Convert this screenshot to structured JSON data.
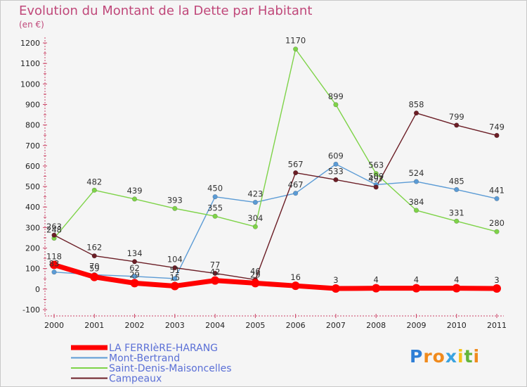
{
  "chart_data": {
    "type": "line",
    "title": "Evolution du Montant de la Dette par Habitant",
    "subtitle": "(en €)",
    "x": [
      "2000",
      "2001",
      "2002",
      "2003",
      "2004",
      "2005",
      "2006",
      "2007",
      "2008",
      "2009",
      "2010",
      "2011"
    ],
    "ylim": [
      -100,
      1200
    ],
    "yticks": [
      -100,
      0,
      100,
      200,
      300,
      400,
      500,
      600,
      700,
      800,
      900,
      1000,
      1100,
      1200
    ],
    "grid": false,
    "legend_position": "bottom-left",
    "series": [
      {
        "name": "Mont-Bertrand",
        "color": "#5b9bd5",
        "values": [
          83,
          70,
          62,
          51,
          450,
          423,
          467,
          609,
          509,
          524,
          485,
          441
        ]
      },
      {
        "name": "Saint-Denis-Maisoncelles",
        "color": "#7ed348",
        "values": [
          248,
          482,
          439,
          393,
          355,
          304,
          1170,
          899,
          563,
          384,
          331,
          280
        ]
      },
      {
        "name": "Campeaux",
        "color": "#6b1e26",
        "values": [
          263,
          162,
          134,
          104,
          77,
          46,
          567,
          533,
          497,
          858,
          799,
          749
        ]
      },
      {
        "name": "LA FERRIèRE-HARANG",
        "color": "#ff0000",
        "values": [
          118,
          59,
          29,
          15,
          42,
          29,
          16,
          3,
          4,
          4,
          4,
          3
        ]
      }
    ],
    "legend_order": [
      "LA FERRIèRE-HARANG",
      "Mont-Bertrand",
      "Saint-Denis-Maisoncelles",
      "Campeaux"
    ]
  },
  "logo": {
    "text": "Proxiti",
    "letters": [
      "P",
      "r",
      "o",
      "x",
      "i",
      "t",
      "i"
    ],
    "colors": [
      "#2f7fd6",
      "#f08a1c",
      "#f08a1c",
      "#3aa3e0",
      "#f4c21a",
      "#63b53a",
      "#f08a1c"
    ]
  }
}
